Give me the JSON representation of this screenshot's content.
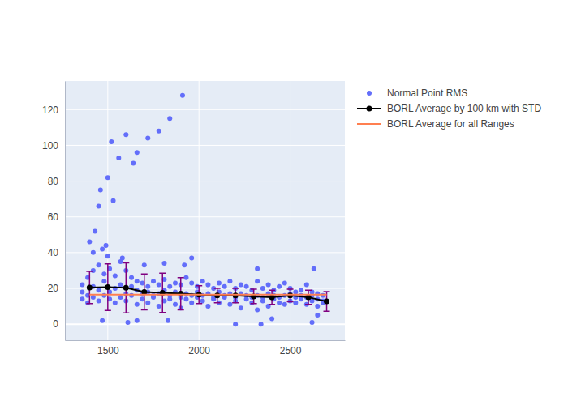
{
  "chart_data": {
    "type": "scatter",
    "xlim": [
      1265,
      2800
    ],
    "xticks": [
      1500,
      2000,
      2500
    ],
    "ylim": [
      -9,
      136
    ],
    "yticks": [
      0,
      20,
      40,
      60,
      80,
      100,
      120
    ],
    "grid": true,
    "legend": "right",
    "series": [
      {
        "name": "Normal Point RMS",
        "type": "scatter",
        "marker": "circle",
        "color": "#636efa",
        "x": [
          1910,
          1840,
          1780,
          1720,
          1600,
          1520,
          1560,
          1660,
          1640,
          1500,
          1460,
          1530,
          1450,
          1430,
          1400,
          1610,
          1660,
          1470,
          1830,
          2200,
          2340,
          2620,
          2400,
          2650,
          1420,
          1470,
          1490,
          1500,
          1580,
          1960,
          1920,
          2320,
          2630,
          1810,
          1700,
          1360,
          1360,
          1360,
          1390,
          1390,
          1390,
          1420,
          1420,
          1420,
          1450,
          1450,
          1450,
          1480,
          1480,
          1480,
          1510,
          1510,
          1510,
          1540,
          1540,
          1540,
          1570,
          1570,
          1570,
          1600,
          1600,
          1600,
          1630,
          1630,
          1630,
          1660,
          1660,
          1660,
          1690,
          1690,
          1690,
          1720,
          1720,
          1720,
          1750,
          1750,
          1750,
          1780,
          1780,
          1780,
          1810,
          1810,
          1810,
          1840,
          1840,
          1840,
          1870,
          1870,
          1870,
          1900,
          1900,
          1900,
          1930,
          1930,
          1930,
          1960,
          1960,
          1960,
          1990,
          1990,
          1990,
          2020,
          2020,
          2020,
          2050,
          2050,
          2050,
          2080,
          2080,
          2080,
          2110,
          2110,
          2110,
          2140,
          2140,
          2140,
          2170,
          2170,
          2170,
          2200,
          2200,
          2200,
          2230,
          2230,
          2230,
          2260,
          2260,
          2260,
          2290,
          2290,
          2290,
          2320,
          2320,
          2320,
          2350,
          2350,
          2350,
          2380,
          2380,
          2380,
          2410,
          2410,
          2410,
          2440,
          2440,
          2440,
          2470,
          2470,
          2470,
          2500,
          2500,
          2500,
          2530,
          2530,
          2530,
          2560,
          2560,
          2560,
          2590,
          2590,
          2590,
          2620,
          2620,
          2620,
          2650,
          2650,
          2650,
          2680,
          2680,
          2680
        ],
        "values": [
          128,
          115,
          108,
          104,
          106,
          102,
          93,
          96,
          90,
          82,
          75,
          69,
          66,
          52,
          46,
          1,
          2,
          2,
          2,
          0,
          0,
          1,
          3,
          5,
          40,
          42,
          44,
          38,
          37,
          37,
          33,
          31,
          31,
          34,
          33,
          14,
          18,
          22,
          12,
          16,
          26,
          15,
          21,
          30,
          13,
          19,
          33,
          16,
          24,
          28,
          14,
          18,
          31,
          12,
          20,
          27,
          15,
          22,
          35,
          13,
          17,
          30,
          16,
          21,
          26,
          11,
          19,
          24,
          14,
          17,
          23,
          12,
          18,
          21,
          15,
          16,
          24,
          10,
          17,
          22,
          13,
          19,
          25,
          14,
          16,
          21,
          11,
          18,
          23,
          9,
          15,
          22,
          14,
          17,
          26,
          12,
          16,
          23,
          15,
          18,
          21,
          13,
          16,
          24,
          10,
          17,
          22,
          14,
          15,
          20,
          12,
          18,
          23,
          15,
          16,
          21,
          11,
          17,
          24,
          13,
          15,
          20,
          9,
          17,
          22,
          14,
          16,
          21,
          12,
          15,
          19,
          8,
          16,
          24,
          13,
          15,
          20,
          10,
          17,
          22,
          14,
          16,
          19,
          12,
          15,
          21,
          11,
          16,
          23,
          13,
          17,
          20,
          12,
          15,
          18,
          14,
          16,
          19,
          11,
          15,
          22,
          13,
          16,
          18,
          10,
          14,
          17,
          12,
          13,
          16
        ]
      },
      {
        "name": "BORL Average by 100 km with STD",
        "type": "line",
        "marker": "circle",
        "color": "#000000",
        "x": [
          1400,
          1500,
          1600,
          1700,
          1800,
          1900,
          2000,
          2100,
          2200,
          2300,
          2400,
          2500,
          2600,
          2700
        ],
        "values": [
          20.5,
          20.7,
          20.3,
          18,
          17.5,
          17,
          16.5,
          16,
          16,
          15.5,
          15,
          16,
          15,
          12.7
        ],
        "error": [
          9,
          13,
          14,
          10,
          11,
          9,
          5,
          4,
          4,
          4,
          4,
          3.5,
          4,
          5.5
        ]
      },
      {
        "name": "BORL Average for all Ranges",
        "type": "line",
        "marker": "none",
        "color": "#ff7f50",
        "x": [
          1400,
          2700
        ],
        "values": [
          16.5,
          16.5
        ]
      }
    ]
  }
}
